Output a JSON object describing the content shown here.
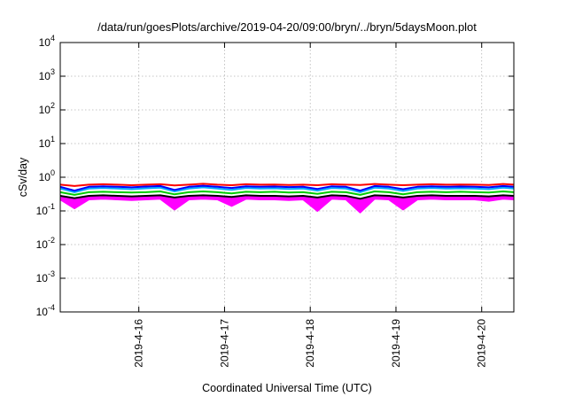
{
  "chart_data": {
    "type": "area",
    "title": "/data/run/goesPlots/archive/2019-04-20/09:00/bryn/../bryn/5daysMoon.plot",
    "xlabel": "Coordinated Universal Time (UTC)",
    "ylabel": "cSv/day",
    "yscale": "log",
    "ylim": [
      0.0001,
      10000
    ],
    "xlim": [
      "2019-04-15 02:00",
      "2019-04-20 09:00"
    ],
    "grid": true,
    "legend": "none",
    "y_ticks": [
      {
        "base": "10",
        "exp": "-4"
      },
      {
        "base": "10",
        "exp": "-3"
      },
      {
        "base": "10",
        "exp": "-2"
      },
      {
        "base": "10",
        "exp": "-1"
      },
      {
        "base": "10",
        "exp": "0"
      },
      {
        "base": "10",
        "exp": "1"
      },
      {
        "base": "10",
        "exp": "2"
      },
      {
        "base": "10",
        "exp": "3"
      },
      {
        "base": "10",
        "exp": "4"
      }
    ],
    "x_ticks": [
      "2019-4-16",
      "2019-4-17",
      "2019-4-18",
      "2019-4-19",
      "2019-4-20"
    ],
    "x": [
      "2019-04-15 02:00",
      "2019-04-15 06:00",
      "2019-04-15 10:00",
      "2019-04-15 14:00",
      "2019-04-15 18:00",
      "2019-04-15 22:00",
      "2019-04-16 02:00",
      "2019-04-16 06:00",
      "2019-04-16 10:00",
      "2019-04-16 14:00",
      "2019-04-16 18:00",
      "2019-04-16 22:00",
      "2019-04-17 02:00",
      "2019-04-17 06:00",
      "2019-04-17 10:00",
      "2019-04-17 14:00",
      "2019-04-17 18:00",
      "2019-04-17 22:00",
      "2019-04-18 02:00",
      "2019-04-18 06:00",
      "2019-04-18 10:00",
      "2019-04-18 14:00",
      "2019-04-18 18:00",
      "2019-04-18 22:00",
      "2019-04-19 02:00",
      "2019-04-19 06:00",
      "2019-04-19 10:00",
      "2019-04-19 14:00",
      "2019-04-19 18:00",
      "2019-04-19 22:00",
      "2019-04-20 02:00",
      "2019-04-20 06:00",
      "2019-04-20 09:00"
    ],
    "series": [
      {
        "color": "#ff0000",
        "values": [
          0.6,
          0.55,
          0.6,
          0.62,
          0.6,
          0.58,
          0.6,
          0.62,
          0.57,
          0.6,
          0.64,
          0.6,
          0.58,
          0.62,
          0.6,
          0.61,
          0.59,
          0.6,
          0.58,
          0.62,
          0.6,
          0.59,
          0.63,
          0.6,
          0.58,
          0.6,
          0.62,
          0.6,
          0.61,
          0.6,
          0.59,
          0.63,
          0.6
        ]
      },
      {
        "color": "#0000ff",
        "values": [
          0.52,
          0.4,
          0.52,
          0.54,
          0.52,
          0.5,
          0.53,
          0.55,
          0.42,
          0.52,
          0.56,
          0.52,
          0.48,
          0.54,
          0.52,
          0.53,
          0.51,
          0.52,
          0.45,
          0.54,
          0.52,
          0.4,
          0.55,
          0.52,
          0.44,
          0.52,
          0.54,
          0.52,
          0.53,
          0.52,
          0.5,
          0.55,
          0.52
        ]
      },
      {
        "color": "#00aaff",
        "values": [
          0.46,
          0.36,
          0.46,
          0.48,
          0.46,
          0.44,
          0.47,
          0.49,
          0.38,
          0.46,
          0.5,
          0.46,
          0.42,
          0.48,
          0.46,
          0.47,
          0.45,
          0.46,
          0.4,
          0.48,
          0.46,
          0.36,
          0.49,
          0.46,
          0.39,
          0.46,
          0.48,
          0.46,
          0.47,
          0.46,
          0.44,
          0.49,
          0.46
        ]
      },
      {
        "color": "#00cc00",
        "values": [
          0.36,
          0.3,
          0.36,
          0.37,
          0.36,
          0.35,
          0.36,
          0.38,
          0.31,
          0.36,
          0.38,
          0.36,
          0.33,
          0.37,
          0.36,
          0.37,
          0.35,
          0.36,
          0.32,
          0.37,
          0.36,
          0.3,
          0.38,
          0.36,
          0.31,
          0.36,
          0.37,
          0.36,
          0.37,
          0.36,
          0.35,
          0.38,
          0.36
        ]
      },
      {
        "color": "#000000",
        "values": [
          0.28,
          0.24,
          0.28,
          0.29,
          0.28,
          0.27,
          0.28,
          0.29,
          0.25,
          0.28,
          0.29,
          0.28,
          0.26,
          0.29,
          0.28,
          0.28,
          0.27,
          0.28,
          0.25,
          0.29,
          0.28,
          0.23,
          0.29,
          0.28,
          0.25,
          0.28,
          0.29,
          0.28,
          0.28,
          0.28,
          0.27,
          0.29,
          0.28
        ]
      },
      {
        "color": "#ff00ff",
        "values": [
          0.22,
          0.12,
          0.22,
          0.23,
          0.22,
          0.21,
          0.22,
          0.23,
          0.11,
          0.22,
          0.23,
          0.22,
          0.14,
          0.23,
          0.22,
          0.22,
          0.21,
          0.22,
          0.1,
          0.23,
          0.22,
          0.09,
          0.23,
          0.22,
          0.11,
          0.22,
          0.23,
          0.22,
          0.22,
          0.22,
          0.2,
          0.23,
          0.22
        ]
      }
    ]
  }
}
